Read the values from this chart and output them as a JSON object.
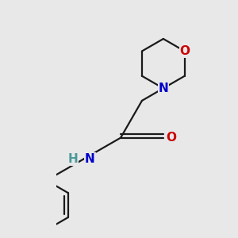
{
  "background_color": "#e8e8e8",
  "bond_color": "#1a1a1a",
  "N_color": "#0000cc",
  "O_color": "#cc0000",
  "H_color": "#4a9a9a",
  "figsize": [
    3.0,
    3.0
  ],
  "dpi": 100,
  "bond_lw": 1.6,
  "font_size": 11,
  "xlim": [
    -1.0,
    3.2
  ],
  "ylim": [
    -2.8,
    2.2
  ]
}
